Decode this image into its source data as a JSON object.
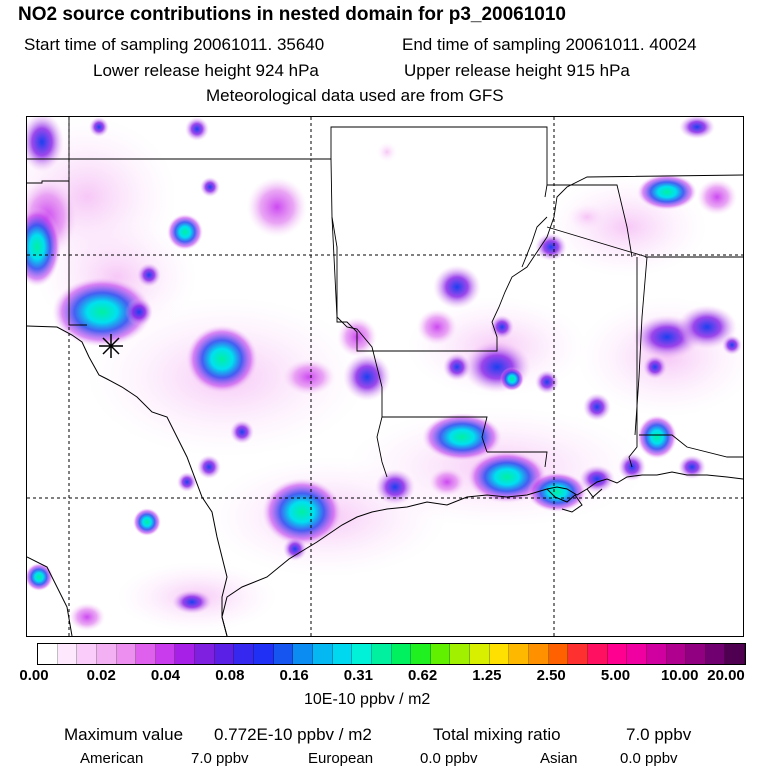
{
  "title": "NO2 source contributions in nested domain for p3_20061010",
  "start_time": "Start time of sampling 20061011. 35640",
  "end_time": "End time of sampling 20061011. 40024",
  "lower_release": "Lower release height  924 hPa",
  "upper_release": "Upper release height  915 hPa",
  "met_data": "Meteorological data used are from GFS",
  "colorbar": {
    "colors": [
      "#ffffff",
      "#fde8fd",
      "#f9ccf9",
      "#f3b0f3",
      "#ec8ff0",
      "#e060ee",
      "#c93cee",
      "#a620e8",
      "#7f1fe0",
      "#5a20e6",
      "#3628ef",
      "#2030f4",
      "#1655f0",
      "#0a8cf2",
      "#05b8f2",
      "#00d8f0",
      "#00f0d8",
      "#00f0a0",
      "#00f060",
      "#20f020",
      "#60f000",
      "#a0f000",
      "#d8f000",
      "#ffe000",
      "#ffb800",
      "#ff9000",
      "#ff6000",
      "#ff3030",
      "#ff1060",
      "#ff0090",
      "#f000a0",
      "#d000a0",
      "#b00090",
      "#900080",
      "#700070",
      "#500050"
    ],
    "tick_labels": [
      "0.00",
      "0.02",
      "0.04",
      "0.08",
      "0.16",
      "0.31",
      "0.62",
      "1.25",
      "2.50",
      "5.00",
      "10.00",
      "20.00"
    ],
    "units": "10E-10 ppbv / m2"
  },
  "summary": {
    "max_label": "Maximum value",
    "max_value": "0.772E-10 ppbv / m2",
    "total_label": "Total mixing ratio",
    "total_value": "7.0 ppbv"
  },
  "sources": [
    {
      "name": "American",
      "value": "7.0 ppbv"
    },
    {
      "name": "European",
      "value": "0.0 ppbv"
    },
    {
      "name": "Asian",
      "value": "0.0 ppbv"
    }
  ]
}
